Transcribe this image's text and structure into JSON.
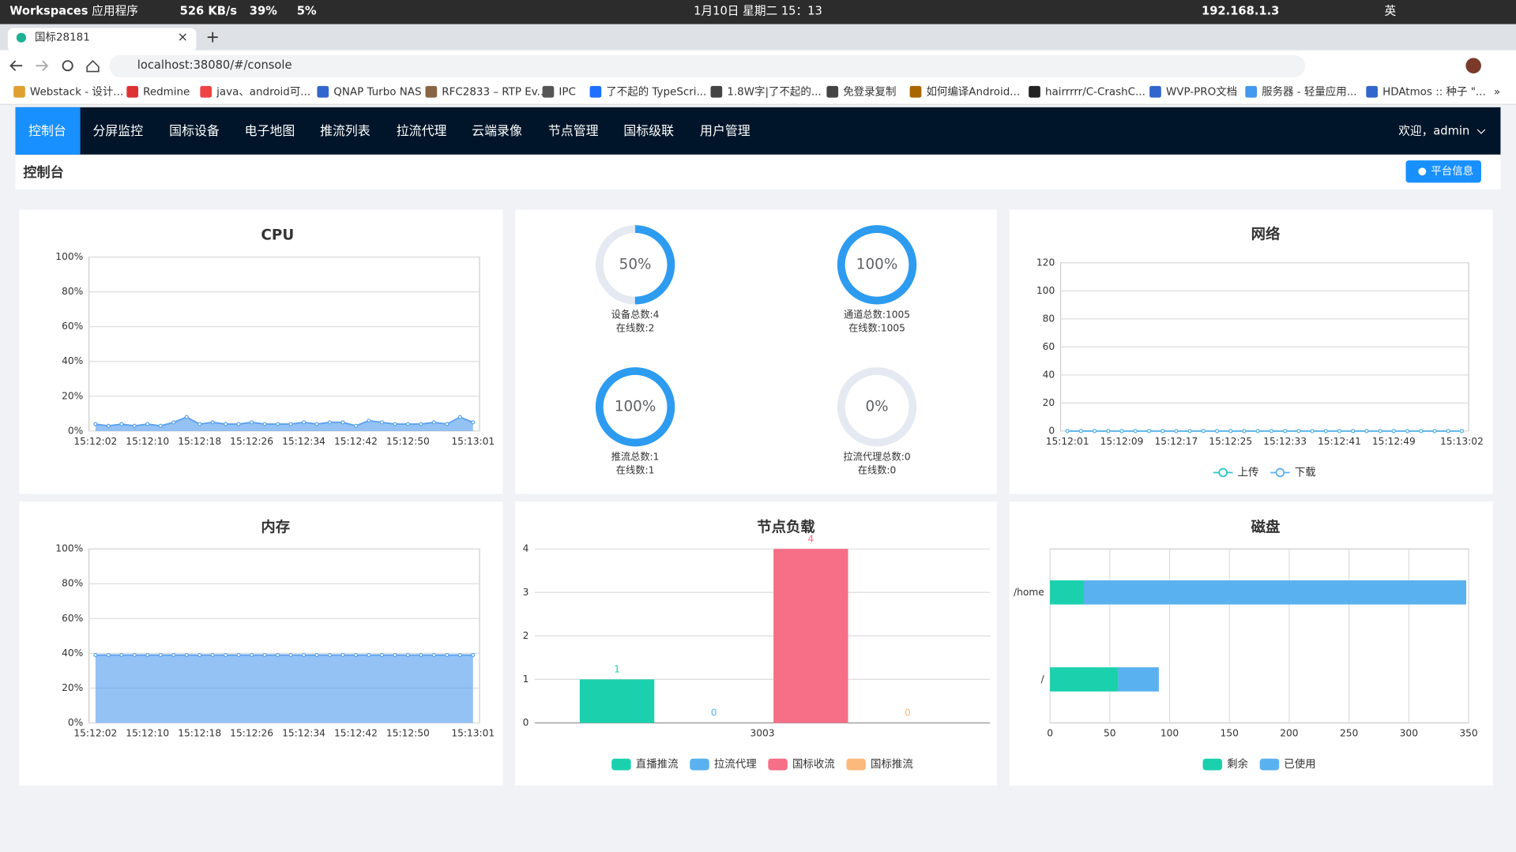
{
  "system_bar": {
    "workspaces": "Workspaces",
    "apps": "应用程序",
    "net": "526 KB/s",
    "cpu": "39%",
    "mem": "5%",
    "clock": "1月10日 星期二 15：13",
    "ip": "192.168.1.3",
    "ime": "英"
  },
  "browser": {
    "tab": "国标28181",
    "close": "×",
    "new_tab": "+",
    "url": "localhost:38080/#/console",
    "bookmarks": [
      "Webstack - 设计...",
      "Redmine",
      "java、android可...",
      "QNAP Turbo NAS",
      "RFC2833 – RTP Ev...",
      "IPC",
      "了不起的 TypeScri...",
      "1.8W字|了不起的...",
      "免登录复制",
      "如何编译Android...",
      "hairrrrr/C-CrashC...",
      "WVP-PRO文档",
      "服务器 - 轻量应用...",
      "HDAtmos :: 种子 \"...",
      "»"
    ]
  },
  "nav": {
    "items": [
      "控制台",
      "分屏监控",
      "国标设备",
      "电子地图",
      "推流列表",
      "拉流代理",
      "云端录像",
      "节点管理",
      "国标级联",
      "用户管理"
    ],
    "active": 0,
    "user": "欢迎，admin"
  },
  "page": {
    "title": "控制台",
    "button": "平台信息"
  },
  "chart_data": [
    {
      "type": "line",
      "title": "CPU",
      "area": true,
      "color": "#5aa1ef",
      "categories": [
        "15:12:02",
        null,
        null,
        null,
        "15:12:10",
        null,
        null,
        null,
        "15:12:18",
        null,
        null,
        null,
        "15:12:26",
        null,
        null,
        null,
        "15:12:34",
        null,
        null,
        null,
        "15:12:42",
        null,
        null,
        null,
        "15:12:50",
        null,
        null,
        null,
        null,
        "15:13:01"
      ],
      "values": [
        4,
        3,
        4,
        3,
        4,
        3,
        5,
        8,
        4,
        5,
        4,
        4,
        5,
        4,
        4,
        4,
        5,
        4,
        5,
        5,
        3,
        6,
        5,
        4,
        4,
        4,
        5,
        4,
        8,
        5
      ],
      "ylim": [
        0,
        100
      ],
      "yticks": [
        {
          "value": 0,
          "label": "0%"
        },
        {
          "value": 20,
          "label": "20%"
        },
        {
          "value": 40,
          "label": "40%"
        },
        {
          "value": 60,
          "label": "60%"
        },
        {
          "value": 80,
          "label": "80%"
        },
        {
          "value": 100,
          "label": "100%"
        }
      ],
      "grid": true
    },
    {
      "type": "gauge",
      "color": "#2d9cf0",
      "values": [
        50,
        100,
        100,
        0
      ],
      "value_labels": [
        "50%",
        "100%",
        "100%",
        "0%"
      ],
      "captions": [
        [
          "设备总数:4",
          "在线数:2"
        ],
        [
          "通道总数:1005",
          "在线数:1005"
        ],
        [
          "推流总数:1",
          "在线数:1"
        ],
        [
          "拉流代理总数:0",
          "在线数:0"
        ]
      ]
    },
    {
      "type": "line",
      "title": "网络",
      "categories": [
        "15:12:01",
        null,
        null,
        null,
        "15:12:09",
        null,
        null,
        null,
        "15:12:17",
        null,
        null,
        null,
        "15:12:25",
        null,
        null,
        null,
        "15:12:33",
        null,
        null,
        null,
        "15:12:41",
        null,
        null,
        null,
        "15:12:49",
        null,
        null,
        null,
        null,
        "15:13:02"
      ],
      "series": [
        {
          "name": "上传",
          "color": "#2ec7c9",
          "values": [
            0,
            0,
            0,
            0,
            0,
            0,
            0,
            0,
            0,
            0,
            0,
            0,
            0,
            0,
            0,
            0,
            0,
            0,
            0,
            0,
            0,
            0,
            0,
            0,
            0,
            0,
            0,
            0,
            0,
            0
          ]
        },
        {
          "name": "下载",
          "color": "#5ab1ef",
          "values": [
            0,
            0,
            0,
            0,
            0,
            0,
            0,
            0,
            0,
            0,
            0,
            0,
            0,
            0,
            0,
            0,
            0,
            0,
            0,
            0,
            0,
            0,
            0,
            0,
            0,
            0,
            0,
            0,
            0,
            0
          ]
        }
      ],
      "ylim": [
        0,
        120
      ],
      "yticks": [
        0,
        20,
        40,
        60,
        80,
        100,
        120
      ],
      "grid": true
    },
    {
      "type": "line",
      "title": "内存",
      "area": true,
      "color": "#5aa1ef",
      "categories": [
        "15:12:02",
        null,
        null,
        null,
        "15:12:10",
        null,
        null,
        null,
        "15:12:18",
        null,
        null,
        null,
        "15:12:26",
        null,
        null,
        null,
        "15:12:34",
        null,
        null,
        null,
        "15:12:42",
        null,
        null,
        null,
        "15:12:50",
        null,
        null,
        null,
        null,
        "15:13:01"
      ],
      "values": [
        39,
        39,
        39,
        39,
        39,
        39,
        39,
        39,
        39,
        39,
        39,
        39,
        39,
        39,
        39,
        39,
        39,
        39,
        39,
        39,
        39,
        39,
        39,
        39,
        39,
        39,
        39,
        39,
        39,
        39
      ],
      "ylim": [
        0,
        100
      ],
      "yticks": [
        {
          "value": 0,
          "label": "0%"
        },
        {
          "value": 20,
          "label": "20%"
        },
        {
          "value": 40,
          "label": "40%"
        },
        {
          "value": 60,
          "label": "60%"
        },
        {
          "value": 80,
          "label": "80%"
        },
        {
          "value": 100,
          "label": "100%"
        }
      ],
      "grid": true
    },
    {
      "type": "bar",
      "title": "节点负载",
      "categories": [
        "3003"
      ],
      "series": [
        {
          "name": "直播推流",
          "color": "#1bd1ad",
          "values": [
            1
          ]
        },
        {
          "name": "拉流代理",
          "color": "#5ab1ef",
          "values": [
            0
          ]
        },
        {
          "name": "国标收流",
          "color": "#f76e87",
          "values": [
            4
          ]
        },
        {
          "name": "国标推流",
          "color": "#fbb97c",
          "values": [
            0
          ]
        }
      ],
      "ylim": [
        0,
        4
      ],
      "yticks": [
        0,
        1,
        2,
        3,
        4
      ],
      "grid": true
    },
    {
      "type": "bar",
      "title": "磁盘",
      "horizontal": true,
      "stacked": true,
      "categories": [
        "/home",
        "/"
      ],
      "series": [
        {
          "name": "剩余",
          "color": "#1bd1ad",
          "values": [
            28,
            57
          ]
        },
        {
          "name": "已使用",
          "color": "#5ab1ef",
          "values": [
            320,
            34
          ]
        }
      ],
      "xlim": [
        0,
        350
      ],
      "xticks": [
        0,
        50,
        100,
        150,
        200,
        250,
        300,
        350
      ],
      "grid": true
    }
  ]
}
